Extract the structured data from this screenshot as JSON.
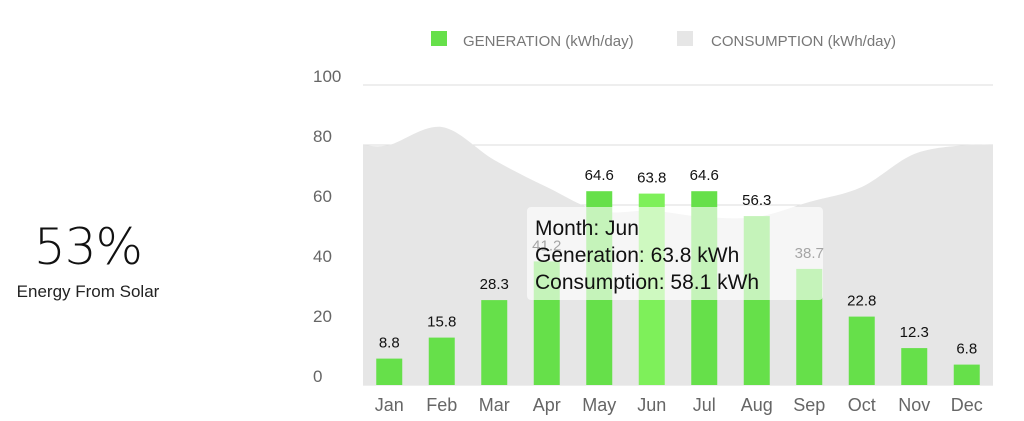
{
  "summary": {
    "percent": "53%",
    "caption": "Energy From Solar"
  },
  "colors": {
    "generation": "#66e04a",
    "generation_highlight": "#7ef05a",
    "consumption": "#e6e6e6"
  },
  "chart_data": {
    "type": "bar",
    "categories": [
      "Jan",
      "Feb",
      "Mar",
      "Apr",
      "May",
      "Jun",
      "Jul",
      "Aug",
      "Sep",
      "Oct",
      "Nov",
      "Dec"
    ],
    "series": [
      {
        "name": "GENERATION (kWh/day)",
        "type": "bar",
        "values": [
          8.8,
          15.8,
          28.3,
          41.2,
          64.6,
          63.8,
          64.6,
          56.3,
          38.7,
          22.8,
          12.3,
          6.8
        ]
      },
      {
        "name": "CONSUMPTION (kWh/day)",
        "type": "area",
        "values": [
          80,
          86,
          75,
          66,
          58,
          58.1,
          56,
          56,
          61,
          66,
          77,
          80
        ]
      }
    ],
    "data_labels": [
      "8.8",
      "15.8",
      "28.3",
      "41.2",
      "64.6",
      "63.8",
      "64.6",
      "56.3",
      "38.7",
      "22.8",
      "12.3",
      "6.8"
    ],
    "y_ticks": [
      "0",
      "20",
      "40",
      "60",
      "80",
      "100"
    ],
    "ylim": [
      0,
      100
    ],
    "grid": true,
    "legend_position": "top",
    "highlighted_category": "Jun"
  },
  "tooltip": {
    "month": "Month: Jun",
    "generation": "Generation: 63.8 kWh",
    "consumption": "Consumption: 58.1 kWh"
  }
}
